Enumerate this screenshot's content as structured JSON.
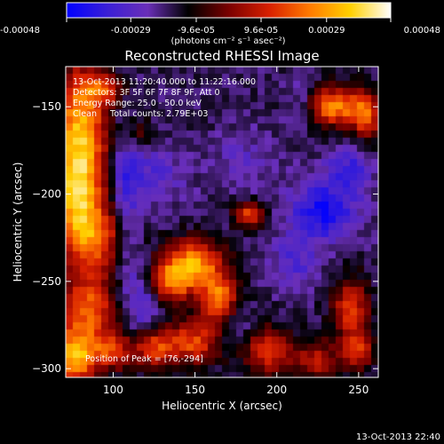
{
  "chart_data": {
    "type": "heatmap",
    "title": "Reconstructed RHESSI Image",
    "xlabel": "Heliocentric X (arcsec)",
    "ylabel": "Heliocentric Y (arcsec)",
    "xlim": [
      71,
      262
    ],
    "ylim": [
      -305,
      -127
    ],
    "x_ticks": [
      100,
      150,
      200,
      250
    ],
    "y_ticks": [
      -150,
      -200,
      -250,
      -300
    ],
    "colorbar": {
      "range": [
        -0.00048,
        0.00048
      ],
      "tick_values": [
        -0.00048,
        -0.00029,
        -9.6e-05,
        9.6e-05,
        0.00029,
        0.00048
      ],
      "tick_labels": [
        "-0.00048",
        "-0.00029",
        "-9.6e-05",
        "9.6e-05",
        "0.00029",
        "0.00048"
      ],
      "unit_label": "(photons cm⁻² s⁻¹ asec⁻²)",
      "colormap": [
        "#0000ff",
        "#3a1fd6",
        "#6a2fb8",
        "#000000",
        "#7a0000",
        "#d82000",
        "#ff7a00",
        "#ffd000",
        "#ffffff"
      ]
    },
    "annotations": [
      "13-Oct-2013 11:20:40.000 to 11:22:16.000",
      "Detectors: 3F 5F 6F 7F 8F 9F, Att 0",
      "Energy Range: 25.0 - 50.0 keV",
      "Clean     Total counts: 2.79E+03"
    ],
    "peak_label": "Position of Peak = [76,-294]",
    "peak": {
      "x": 76,
      "y": -294
    },
    "emission_sources": [
      {
        "x": 80,
        "y": -160,
        "sx": 12,
        "sy": 25,
        "amplitude": 0.00045
      },
      {
        "x": 78,
        "y": -200,
        "sx": 10,
        "sy": 20,
        "amplitude": 0.00042
      },
      {
        "x": 90,
        "y": -225,
        "sx": 14,
        "sy": 14,
        "amplitude": 0.00034
      },
      {
        "x": 76,
        "y": -294,
        "sx": 9,
        "sy": 12,
        "amplitude": 0.00048
      },
      {
        "x": 85,
        "y": -265,
        "sx": 12,
        "sy": 14,
        "amplitude": 0.00036
      },
      {
        "x": 100,
        "y": -290,
        "sx": 10,
        "sy": 8,
        "amplitude": 0.0003
      },
      {
        "x": 150,
        "y": -240,
        "sx": 12,
        "sy": 10,
        "amplitude": 0.00044
      },
      {
        "x": 135,
        "y": -250,
        "sx": 9,
        "sy": 9,
        "amplitude": 0.00036
      },
      {
        "x": 165,
        "y": -260,
        "sx": 8,
        "sy": 10,
        "amplitude": 0.0004
      },
      {
        "x": 148,
        "y": -285,
        "sx": 12,
        "sy": 9,
        "amplitude": 0.00034
      },
      {
        "x": 125,
        "y": -288,
        "sx": 8,
        "sy": 8,
        "amplitude": 0.0003
      },
      {
        "x": 195,
        "y": -290,
        "sx": 11,
        "sy": 10,
        "amplitude": 0.0003
      },
      {
        "x": 225,
        "y": -295,
        "sx": 9,
        "sy": 8,
        "amplitude": 0.00026
      },
      {
        "x": 245,
        "y": -265,
        "sx": 8,
        "sy": 12,
        "amplitude": 0.00032
      },
      {
        "x": 250,
        "y": -290,
        "sx": 7,
        "sy": 8,
        "amplitude": 0.00028
      },
      {
        "x": 235,
        "y": -150,
        "sx": 12,
        "sy": 8,
        "amplitude": 0.00042
      },
      {
        "x": 255,
        "y": -155,
        "sx": 7,
        "sy": 10,
        "amplitude": 0.00032
      },
      {
        "x": 183,
        "y": -212,
        "sx": 6,
        "sy": 5,
        "amplitude": 0.00034
      },
      {
        "x": 115,
        "y": -165,
        "sx": 6,
        "sy": 6,
        "amplitude": 0.00016
      },
      {
        "x": 95,
        "y": -140,
        "sx": 10,
        "sy": 6,
        "amplitude": 0.00022
      }
    ],
    "negative_lobes": [
      {
        "x": 228,
        "y": -210,
        "sx": 14,
        "sy": 12,
        "amplitude": -0.00026
      },
      {
        "x": 245,
        "y": -185,
        "sx": 10,
        "sy": 10,
        "amplitude": -0.00016
      },
      {
        "x": 125,
        "y": -190,
        "sx": 14,
        "sy": 12,
        "amplitude": -0.00012
      },
      {
        "x": 210,
        "y": -240,
        "sx": 10,
        "sy": 10,
        "amplitude": -0.00013
      },
      {
        "x": 180,
        "y": -180,
        "sx": 12,
        "sy": 12,
        "amplitude": -8e-05
      }
    ],
    "dark_bands": [
      {
        "x": 108,
        "y": -210,
        "sx": 6,
        "sy": 40,
        "amplitude": -0.00016
      },
      {
        "x": 120,
        "y": -262,
        "sx": 7,
        "sy": 14,
        "amplitude": -0.00014
      },
      {
        "x": 215,
        "y": -150,
        "sx": 6,
        "sy": 10,
        "amplitude": -0.00012
      },
      {
        "x": 175,
        "y": -275,
        "sx": 6,
        "sy": 8,
        "amplitude": -0.00012
      }
    ],
    "background_level": -0.00018
  },
  "footer_timestamp": "13-Oct-2013 22:40"
}
